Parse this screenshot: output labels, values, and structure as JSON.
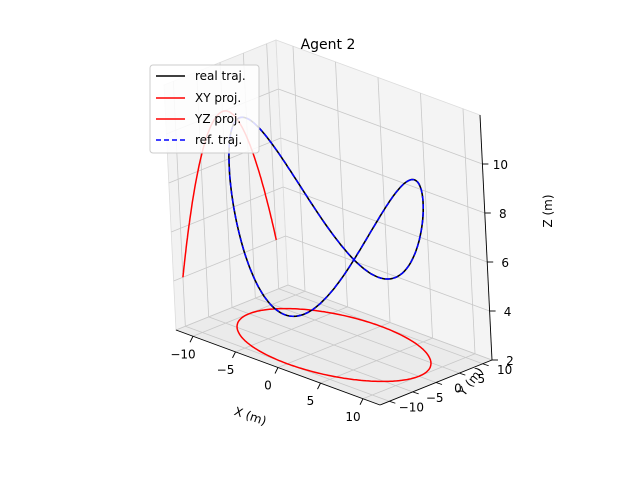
{
  "chart_data": {
    "type": "line",
    "projection": "3d",
    "title": "Agent 2",
    "xlabel": "X (m)",
    "ylabel": "Y (m)",
    "zlabel": "Z (m)",
    "xlim": [
      -12,
      12
    ],
    "ylim": [
      -12,
      12
    ],
    "zlim": [
      2,
      12
    ],
    "xticks": [
      "−10",
      "−5",
      "0",
      "5",
      "10"
    ],
    "yticks": [
      "−10",
      "−5",
      "0",
      "5",
      "10"
    ],
    "zticks": [
      "2",
      "4",
      "6",
      "8",
      "10"
    ],
    "grid": true,
    "legend_position": "top-left",
    "trajectory_params": {
      "radius": 10,
      "z_center": 7,
      "z_amplitude": 3,
      "z_frequency": 2
    },
    "series": [
      {
        "name": "real traj.",
        "color": "#000000",
        "style": "solid"
      },
      {
        "name": "XY proj.",
        "color": "#ff0000",
        "style": "solid"
      },
      {
        "name": "YZ proj.",
        "color": "#ff0000",
        "style": "solid"
      },
      {
        "name": "ref. traj.",
        "color": "#0000ff",
        "style": "dashed"
      }
    ]
  }
}
